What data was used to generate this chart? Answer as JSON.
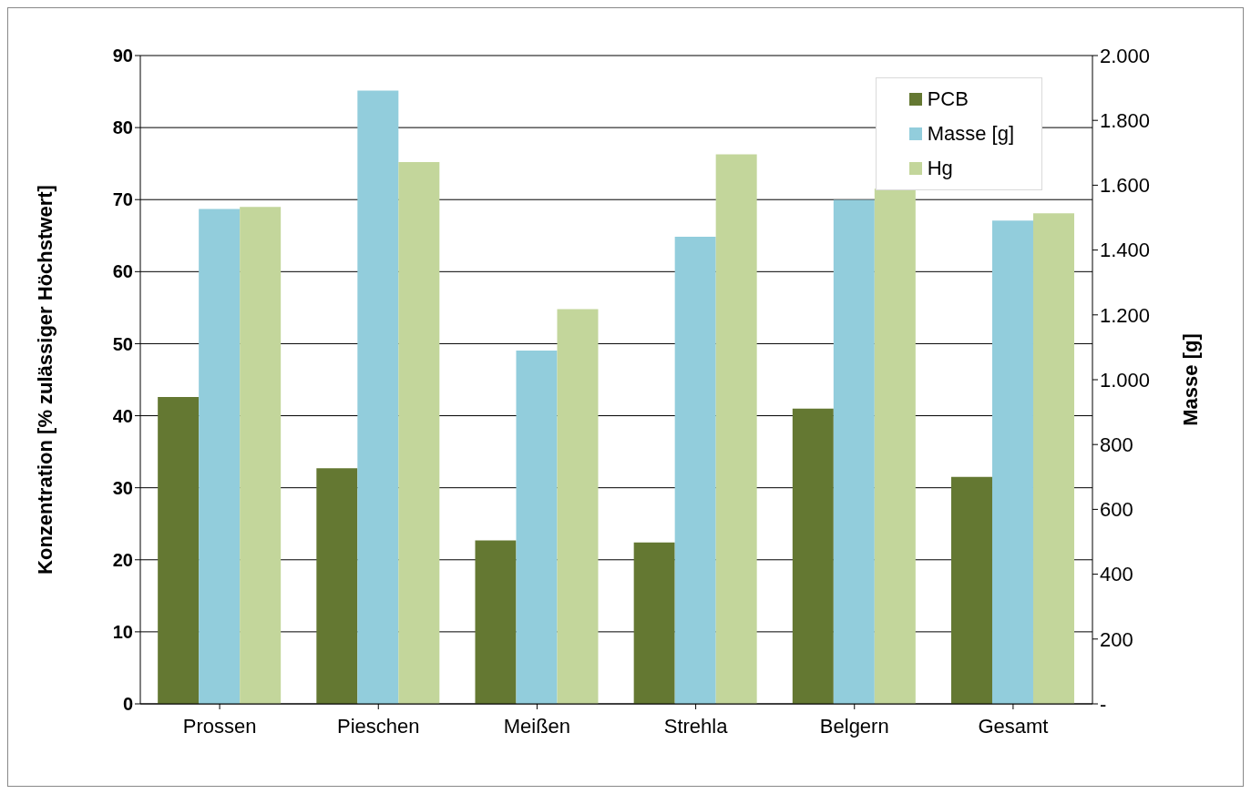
{
  "chart_data": {
    "type": "bar",
    "categories": [
      "Prossen",
      "Pieschen",
      "Meißen",
      "Strehla",
      "Belgern",
      "Gesamt"
    ],
    "ylabel": "Konzentration [% zulässiger Höchstwert]",
    "y2label": "Masse [g]",
    "series": [
      {
        "name": "PCB",
        "color": "#647832",
        "values": [
          42.6,
          32.7,
          22.7,
          22.4,
          41.0,
          31.5
        ]
      },
      {
        "name": "Masse [g]",
        "color": "#92cddc",
        "axis": "y2",
        "values": [
          1527,
          1892,
          1090,
          1441,
          1555,
          1491
        ]
      },
      {
        "name": "Hg",
        "color": "#c3d69b",
        "values": [
          69.0,
          75.2,
          54.8,
          76.3,
          71.5,
          68.1
        ]
      }
    ],
    "ylim": [
      0,
      90
    ],
    "yticks": [
      0,
      10,
      20,
      30,
      40,
      50,
      60,
      70,
      80,
      90
    ],
    "y2lim": [
      0,
      2000
    ],
    "y2ticks": [
      {
        "value": 0,
        "label": "-"
      },
      {
        "value": 200,
        "label": "200"
      },
      {
        "value": 400,
        "label": "400"
      },
      {
        "value": 600,
        "label": "600"
      },
      {
        "value": 800,
        "label": "800"
      },
      {
        "value": 1000,
        "label": "1.000"
      },
      {
        "value": 1200,
        "label": "1.200"
      },
      {
        "value": 1400,
        "label": "1.400"
      },
      {
        "value": 1600,
        "label": "1.600"
      },
      {
        "value": 1800,
        "label": "1.800"
      },
      {
        "value": 2000,
        "label": "2.000"
      }
    ],
    "grid": "y",
    "legend": "top right"
  }
}
